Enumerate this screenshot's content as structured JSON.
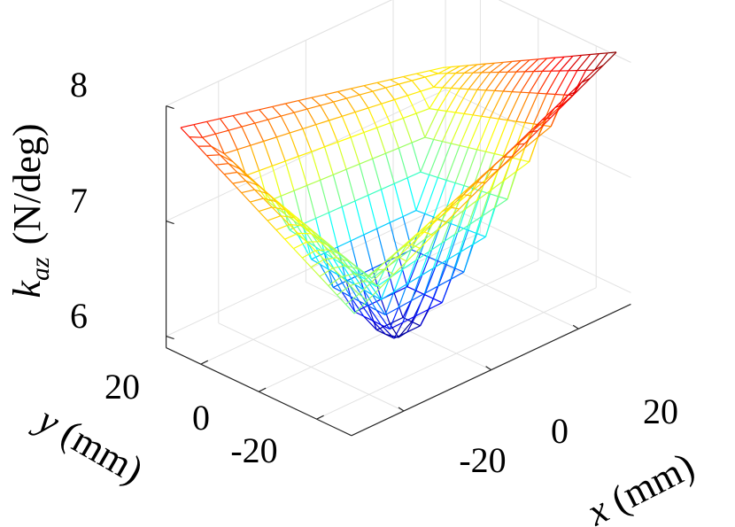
{
  "chart_data": {
    "type": "surface-mesh",
    "title": "",
    "colormap": "jet",
    "grid": true,
    "x_axis": {
      "label_var": "x",
      "label_unit": " (mm)",
      "ticks": [
        "-20",
        "0",
        "20"
      ],
      "range": [
        -32,
        32
      ]
    },
    "y_axis": {
      "label_var": "y",
      "label_unit": " (mm)",
      "ticks": [
        "20",
        "0",
        "-20"
      ],
      "range": [
        -32,
        32
      ]
    },
    "z_axis": {
      "label_var": "k",
      "label_sub": "az",
      "label_unit": "(N/deg)",
      "ticks": [
        "6",
        "7",
        "8"
      ],
      "range": [
        5.9,
        8.0
      ]
    },
    "mesh": {
      "x_range": [
        -30,
        30
      ],
      "y_range": [
        -30,
        30
      ],
      "grid_n": 21,
      "corners": {
        "x_neg_y_neg": 6.9,
        "x_pos_y_neg": 8.1,
        "x_neg_y_pos": 7.8,
        "x_pos_y_pos": 7.25
      },
      "center": 5.8
    }
  }
}
